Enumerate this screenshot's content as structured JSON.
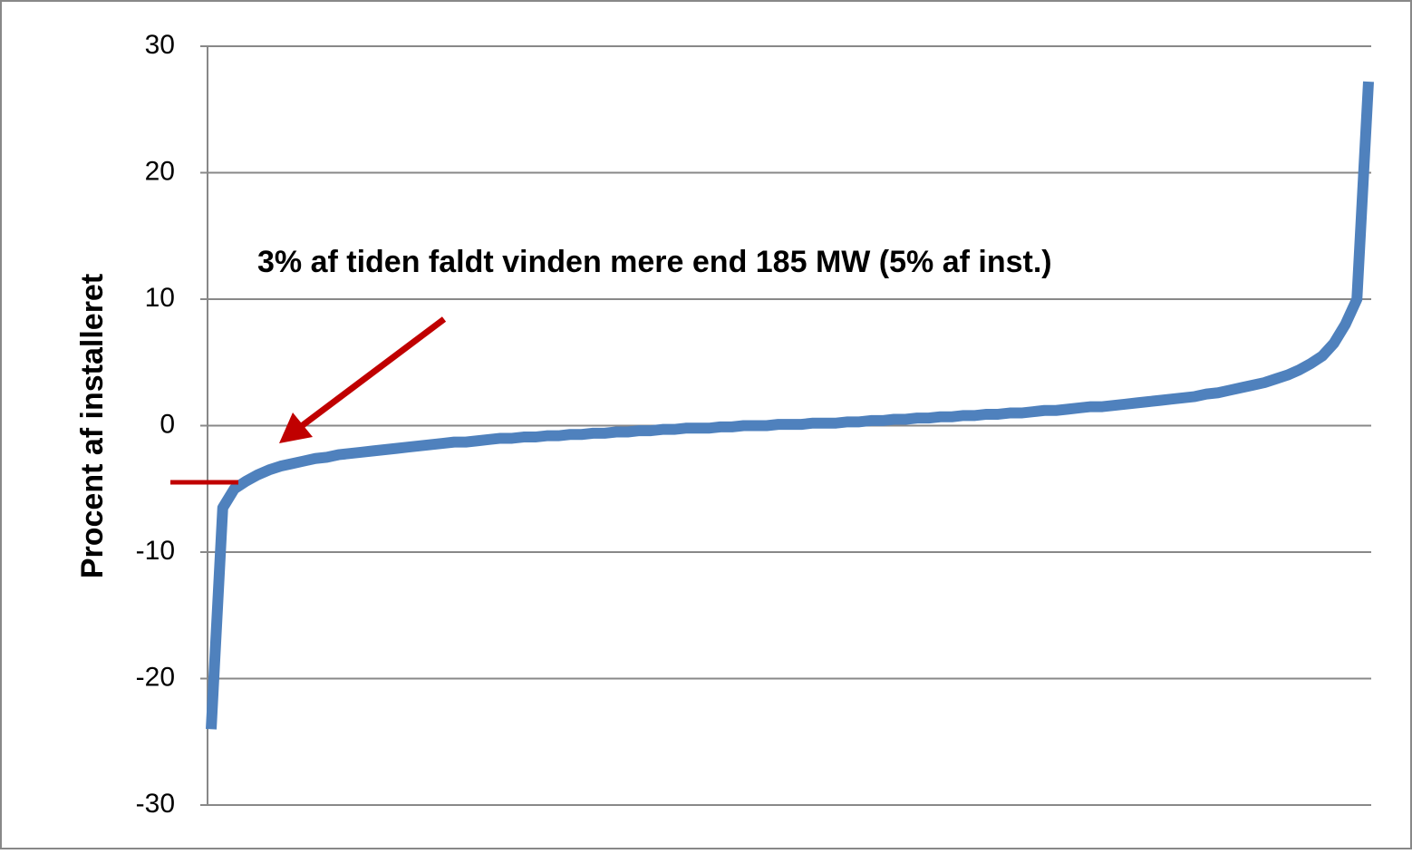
{
  "chart_data": {
    "type": "line",
    "ylabel": "Procent af installeret",
    "annotation": "3% af tiden faldt vinden mere end 185 MW (5% af inst.)",
    "series": [
      {
        "color": "#4f81bd",
        "values": [
          -24,
          -6.5,
          -5,
          -4.4,
          -3.9,
          -3.5,
          -3.2,
          -3.0,
          -2.8,
          -2.6,
          -2.5,
          -2.3,
          -2.2,
          -2.1,
          -2.0,
          -1.9,
          -1.8,
          -1.7,
          -1.6,
          -1.5,
          -1.4,
          -1.3,
          -1.3,
          -1.2,
          -1.1,
          -1.0,
          -1.0,
          -0.9,
          -0.9,
          -0.8,
          -0.8,
          -0.7,
          -0.7,
          -0.6,
          -0.6,
          -0.5,
          -0.5,
          -0.4,
          -0.4,
          -0.3,
          -0.3,
          -0.2,
          -0.2,
          -0.2,
          -0.1,
          -0.1,
          0,
          0,
          0,
          0.1,
          0.1,
          0.1,
          0.2,
          0.2,
          0.2,
          0.3,
          0.3,
          0.4,
          0.4,
          0.5,
          0.5,
          0.6,
          0.6,
          0.7,
          0.7,
          0.8,
          0.8,
          0.9,
          0.9,
          1.0,
          1.0,
          1.1,
          1.2,
          1.2,
          1.3,
          1.4,
          1.5,
          1.5,
          1.6,
          1.7,
          1.8,
          1.9,
          2.0,
          2.1,
          2.2,
          2.3,
          2.5,
          2.6,
          2.8,
          3.0,
          3.2,
          3.4,
          3.7,
          4.0,
          4.4,
          4.9,
          5.5,
          6.5,
          8,
          10,
          27.2
        ]
      }
    ],
    "ylim": [
      -30,
      30
    ],
    "yticks": [
      -30,
      -20,
      -10,
      0,
      10,
      20,
      30
    ],
    "grid": true
  }
}
